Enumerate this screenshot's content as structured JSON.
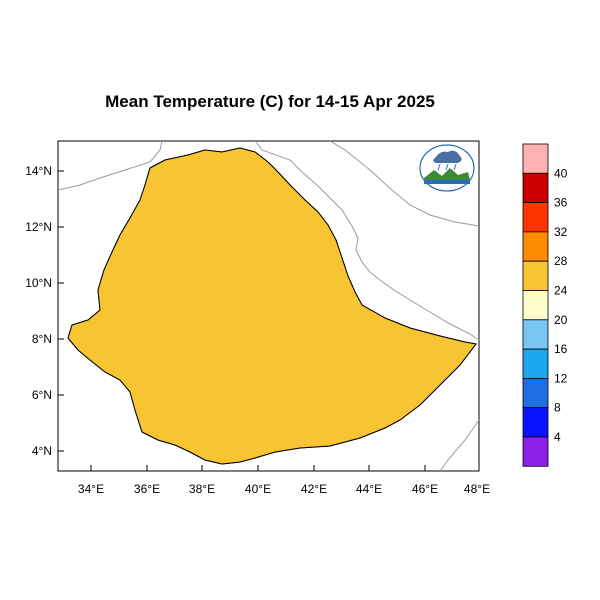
{
  "title": "Mean Temperature (C) for 14-15 Apr 2025",
  "axes": {
    "lat_ticks": [
      "14°N",
      "12°N",
      "10°N",
      "8°N",
      "6°N",
      "4°N"
    ],
    "lon_ticks": [
      "34°E",
      "36°E",
      "38°E",
      "40°E",
      "42°E",
      "44°E",
      "46°E",
      "48°E"
    ]
  },
  "colorbar": {
    "labels": [
      "40",
      "36",
      "32",
      "28",
      "24",
      "20",
      "16",
      "12",
      "8",
      "4"
    ],
    "colors": [
      "#ffb0b0",
      "#cc0000",
      "#ff3300",
      "#ff8c00",
      "#f7c531",
      "#ffffcc",
      "#7ac6f2",
      "#19a8ef",
      "#1f6fe0",
      "#0a12ff",
      "#8c1fe8"
    ]
  },
  "map_colors": {
    "warm_28_32": "#f7c531",
    "mild_24_28": "#ffffcc",
    "cool_20_24": "#7ac6f2",
    "cold_16_20": "#19a8ef",
    "hot_32_36": "#ff8c00",
    "border": "#000000"
  },
  "logo": {
    "name": "meteorology-institute-logo"
  }
}
